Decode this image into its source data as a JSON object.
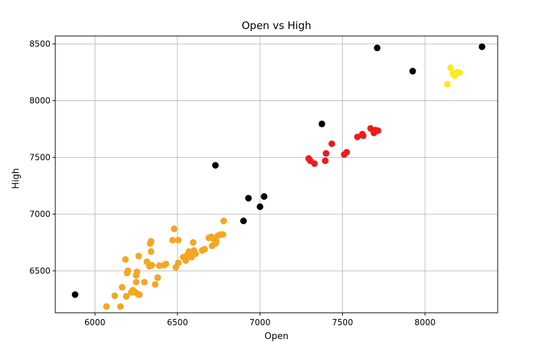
{
  "chart_data": {
    "type": "scatter",
    "title": "Open vs High",
    "xlabel": "Open",
    "ylabel": "High",
    "xlim": [
      5760,
      8440
    ],
    "ylim": [
      6130,
      8570
    ],
    "xticks": [
      6000,
      6500,
      7000,
      7500,
      8000
    ],
    "yticks": [
      6500,
      7000,
      7500,
      8000,
      8500
    ],
    "grid": true,
    "series": [
      {
        "color": "#000000",
        "points": [
          [
            5880,
            6290
          ],
          [
            6730,
            7430
          ],
          [
            6900,
            6940
          ],
          [
            6930,
            7140
          ],
          [
            7000,
            7065
          ],
          [
            7025,
            7155
          ],
          [
            7375,
            7795
          ],
          [
            7710,
            8465
          ],
          [
            7925,
            8260
          ],
          [
            8345,
            8475
          ]
        ]
      },
      {
        "color": "#ee1c1c",
        "points": [
          [
            7295,
            7490
          ],
          [
            7305,
            7470
          ],
          [
            7330,
            7445
          ],
          [
            7395,
            7470
          ],
          [
            7400,
            7535
          ],
          [
            7435,
            7620
          ],
          [
            7510,
            7525
          ],
          [
            7525,
            7545
          ],
          [
            7590,
            7680
          ],
          [
            7620,
            7705
          ],
          [
            7625,
            7690
          ],
          [
            7670,
            7755
          ],
          [
            7690,
            7715
          ],
          [
            7700,
            7740
          ],
          [
            7715,
            7735
          ]
        ]
      },
      {
        "color": "#ffea1c",
        "points": [
          [
            8135,
            8145
          ],
          [
            8155,
            8290
          ],
          [
            8170,
            8240
          ],
          [
            8180,
            8220
          ],
          [
            8195,
            8250
          ],
          [
            8210,
            8245
          ]
        ]
      },
      {
        "color": "#f5a623",
        "points": [
          [
            6070,
            6185
          ],
          [
            6120,
            6280
          ],
          [
            6155,
            6185
          ],
          [
            6165,
            6355
          ],
          [
            6185,
            6600
          ],
          [
            6190,
            6275
          ],
          [
            6195,
            6480
          ],
          [
            6200,
            6500
          ],
          [
            6220,
            6310
          ],
          [
            6230,
            6330
          ],
          [
            6245,
            6310
          ],
          [
            6250,
            6400
          ],
          [
            6250,
            6460
          ],
          [
            6255,
            6490
          ],
          [
            6260,
            6295
          ],
          [
            6265,
            6630
          ],
          [
            6270,
            6290
          ],
          [
            6300,
            6400
          ],
          [
            6315,
            6580
          ],
          [
            6330,
            6540
          ],
          [
            6335,
            6740
          ],
          [
            6340,
            6760
          ],
          [
            6340,
            6670
          ],
          [
            6345,
            6550
          ],
          [
            6365,
            6380
          ],
          [
            6380,
            6440
          ],
          [
            6390,
            6545
          ],
          [
            6420,
            6550
          ],
          [
            6430,
            6560
          ],
          [
            6470,
            6770
          ],
          [
            6480,
            6870
          ],
          [
            6490,
            6530
          ],
          [
            6505,
            6770
          ],
          [
            6505,
            6570
          ],
          [
            6535,
            6620
          ],
          [
            6550,
            6590
          ],
          [
            6560,
            6640
          ],
          [
            6570,
            6670
          ],
          [
            6580,
            6650
          ],
          [
            6585,
            6620
          ],
          [
            6595,
            6750
          ],
          [
            6600,
            6680
          ],
          [
            6610,
            6650
          ],
          [
            6650,
            6680
          ],
          [
            6665,
            6690
          ],
          [
            6690,
            6790
          ],
          [
            6705,
            6800
          ],
          [
            6710,
            6720
          ],
          [
            6720,
            6780
          ],
          [
            6730,
            6740
          ],
          [
            6735,
            6760
          ],
          [
            6745,
            6810
          ],
          [
            6760,
            6820
          ],
          [
            6775,
            6820
          ],
          [
            6780,
            6940
          ]
        ]
      }
    ]
  }
}
